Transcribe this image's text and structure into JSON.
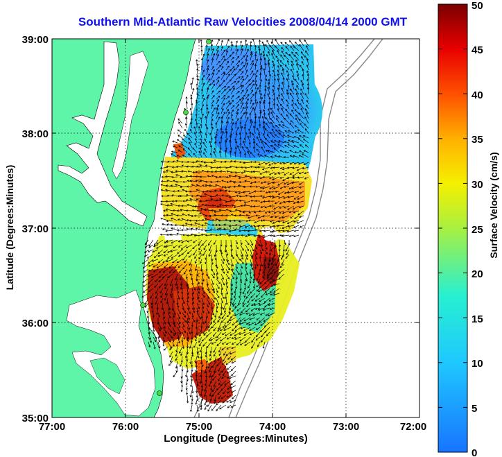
{
  "map": {
    "title": "Southern Mid-Atlantic Raw Velocities 2008/04/14 2000 GMT",
    "xlabel": "Longitude (Degrees:Minutes)",
    "ylabel": "Latitude (Degrees:Minutes)",
    "lon_ticks": [
      "77:00",
      "76:00",
      "75:00",
      "74:00",
      "73:00",
      "72:00"
    ],
    "lat_ticks": [
      "39:00",
      "38:00",
      "37:00",
      "36:00",
      "35:00"
    ],
    "land_color": "#5ef5a8",
    "grid": "dotted"
  },
  "colorbar": {
    "label": "Surface Velocity (cm/s)",
    "ticks": [
      "0",
      "5",
      "10",
      "15",
      "20",
      "25",
      "30",
      "35",
      "40",
      "45",
      "50"
    ],
    "range": [
      0,
      50
    ],
    "colormap": "jet"
  }
}
